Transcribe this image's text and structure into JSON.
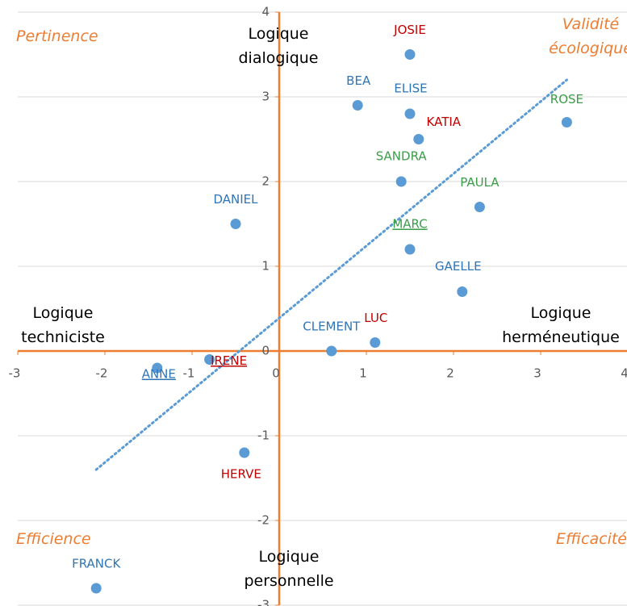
{
  "chart_data": {
    "type": "scatter",
    "xlim": [
      -3,
      4
    ],
    "ylim": [
      -3,
      4
    ],
    "xticks": [
      -3,
      -2,
      -1,
      0,
      1,
      2,
      3,
      4
    ],
    "yticks": [
      -3,
      -2,
      -1,
      0,
      1,
      2,
      3,
      4
    ],
    "grid": "y",
    "axis_color": "#ed7d31",
    "point_color": "#5b9bd5",
    "labels": [
      "JOSIE",
      "BEA",
      "ELISE",
      "KATIA",
      "ROSE",
      "SANDRA",
      "PAULA",
      "DANIEL",
      "MARC",
      "GAELLE",
      "CLEMENT",
      "LUC",
      "IRENE",
      "ANNE",
      "HERVE",
      "FRANCK"
    ],
    "x": [
      1.5,
      0.9,
      1.5,
      1.6,
      3.3,
      1.4,
      2.3,
      -0.5,
      1.5,
      2.1,
      0.6,
      1.1,
      -0.8,
      -1.4,
      -0.4,
      -2.1
    ],
    "y": [
      3.5,
      2.9,
      2.8,
      2.5,
      2.7,
      2.0,
      1.7,
      1.5,
      1.2,
      0.7,
      0,
      0.1,
      -0.1,
      -0.2,
      -1.2,
      -2.8
    ],
    "label_colors": [
      "#c00000",
      "#2e75b6",
      "#2e75b6",
      "#c00000",
      "#3a9e48",
      "#3a9e48",
      "#3a9e48",
      "#2e75b6",
      "#3a9e48",
      "#2e75b6",
      "#2e75b6",
      "#c00000",
      "#c00000",
      "#2e75b6",
      "#c00000",
      "#2e75b6"
    ],
    "underline": [
      false,
      false,
      false,
      false,
      false,
      false,
      false,
      false,
      true,
      false,
      false,
      false,
      true,
      true,
      false,
      false
    ],
    "trendline": {
      "x": [
        -2.1,
        3.3
      ],
      "y": [
        -1.4,
        3.2
      ],
      "color": "#5b9bd5"
    },
    "axis_labels": {
      "top": [
        "Logique",
        "dialogique"
      ],
      "bottom": [
        "Logique",
        "personnelle"
      ],
      "left": [
        "Logique",
        "techniciste"
      ],
      "right": [
        "Logique",
        "herméneutique"
      ]
    },
    "quadrants": {
      "top_left": [
        "Pertinence"
      ],
      "top_right": [
        "Validité",
        "écologique"
      ],
      "bottom_left": [
        "Efficience"
      ],
      "bottom_right": [
        "Efficacité"
      ]
    }
  }
}
